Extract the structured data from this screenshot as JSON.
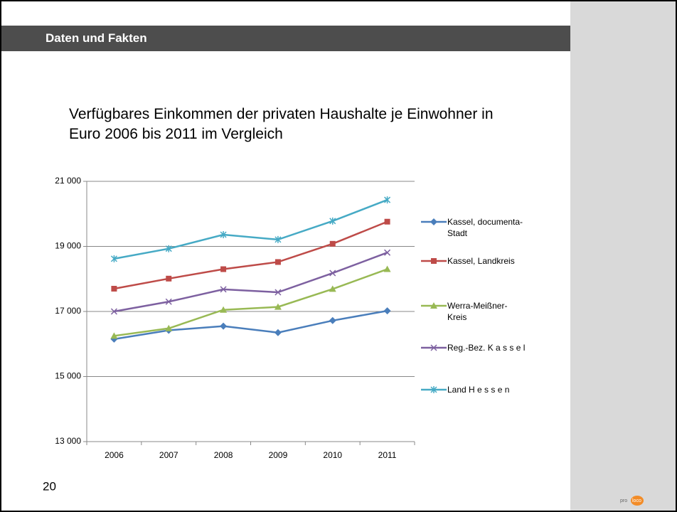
{
  "header": {
    "title": "Daten und Fakten"
  },
  "page_number": 20,
  "logo": [
    "pro",
    "loco"
  ],
  "chart_data": {
    "type": "line",
    "title": "Verfügbares Einkommen der privaten Haushalte je Einwohner in Euro 2006 bis 2011 im Vergleich",
    "categories": [
      "2006",
      "2007",
      "2008",
      "2009",
      "2010",
      "2011"
    ],
    "series": [
      {
        "name": "Kassel, documenta-Stadt",
        "color": "#4a7ebb",
        "marker": "diamond",
        "values": [
          16150,
          16420,
          16550,
          16350,
          16720,
          17020
        ]
      },
      {
        "name": "Kassel, Landkreis",
        "color": "#be4b48",
        "marker": "square",
        "values": [
          17700,
          18010,
          18300,
          18520,
          19080,
          19760
        ]
      },
      {
        "name": "Werra-Meißner-Kreis",
        "color": "#98b954",
        "marker": "triangle",
        "values": [
          16250,
          16480,
          17050,
          17140,
          17690,
          18300
        ]
      },
      {
        "name": "Reg.-Bez. K a s s e l",
        "color": "#7d60a0",
        "marker": "x",
        "values": [
          17000,
          17300,
          17680,
          17590,
          18180,
          18810
        ]
      },
      {
        "name": "Land H e s s e n",
        "color": "#46aac5",
        "marker": "star",
        "values": [
          18620,
          18930,
          19360,
          19210,
          19780,
          20430
        ]
      }
    ],
    "ylim": [
      13000,
      21000
    ],
    "yticks": [
      {
        "value": 13000,
        "label": "13 000"
      },
      {
        "value": 15000,
        "label": "15 000"
      },
      {
        "value": 17000,
        "label": "17 000"
      },
      {
        "value": 19000,
        "label": "19 000"
      },
      {
        "value": 21000,
        "label": "21 000"
      }
    ],
    "grid": true,
    "legend": "right"
  }
}
